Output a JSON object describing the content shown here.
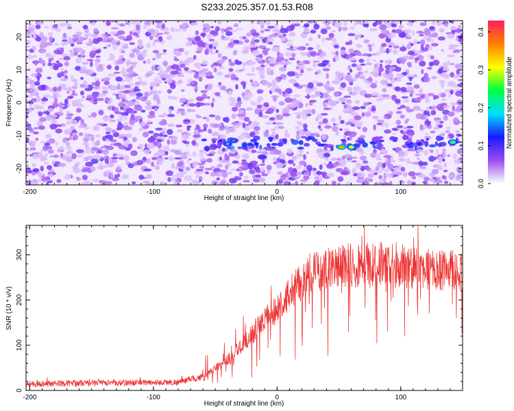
{
  "title": "S233.2025.357.01.53.R08",
  "chart_data": [
    {
      "type": "heatmap",
      "name": "spectrogram",
      "xlabel": "Height of straight line (km)",
      "ylabel": "Frequency (Hz)",
      "xlim": [
        -203,
        150
      ],
      "ylim": [
        -25,
        25
      ],
      "xticks": [
        -200,
        -100,
        0,
        100
      ],
      "yticks": [
        -20,
        -10,
        0,
        10,
        20
      ],
      "colorbar": {
        "label": "Normalized spectral amplitude",
        "range": [
          0.0,
          0.43
        ],
        "ticks": [
          0.0,
          0.1,
          0.2,
          0.3,
          0.4
        ],
        "colors": [
          "#ffffff",
          "#9a4cf2",
          "#1a1aff",
          "#00e0ff",
          "#00ff40",
          "#ffff00",
          "#ff8000",
          "#ff2060"
        ]
      },
      "signal_band_hz": -12.5,
      "peaks": [
        {
          "x": -40,
          "y": -12.5,
          "amp": 0.18
        },
        {
          "x": -35,
          "y": -11.5,
          "amp": 0.16
        },
        {
          "x": -12,
          "y": -16.5,
          "amp": 0.14
        },
        {
          "x": 52,
          "y": -13.5,
          "amp": 0.35
        },
        {
          "x": 60,
          "y": -13.5,
          "amp": 0.3
        },
        {
          "x": 142,
          "y": -12.0,
          "amp": 0.26
        },
        {
          "x": 115,
          "y": -12.5,
          "amp": 0.12
        }
      ]
    },
    {
      "type": "line",
      "name": "snr",
      "xlabel": "Height of straight line (km)",
      "ylabel": "SNR (10 * v/v)",
      "xlim": [
        -203,
        150
      ],
      "ylim": [
        0,
        365
      ],
      "xticks": [
        -200,
        -100,
        0,
        100
      ],
      "yticks": [
        0,
        100,
        200,
        300
      ],
      "color": "#ee3333",
      "trend": [
        {
          "x": -203,
          "y": 15
        },
        {
          "x": -80,
          "y": 18
        },
        {
          "x": -60,
          "y": 30
        },
        {
          "x": -40,
          "y": 70
        },
        {
          "x": -20,
          "y": 130
        },
        {
          "x": 0,
          "y": 190
        },
        {
          "x": 15,
          "y": 240
        },
        {
          "x": 30,
          "y": 275
        },
        {
          "x": 50,
          "y": 285
        },
        {
          "x": 80,
          "y": 290
        },
        {
          "x": 120,
          "y": 280
        },
        {
          "x": 150,
          "y": 270
        }
      ]
    }
  ]
}
